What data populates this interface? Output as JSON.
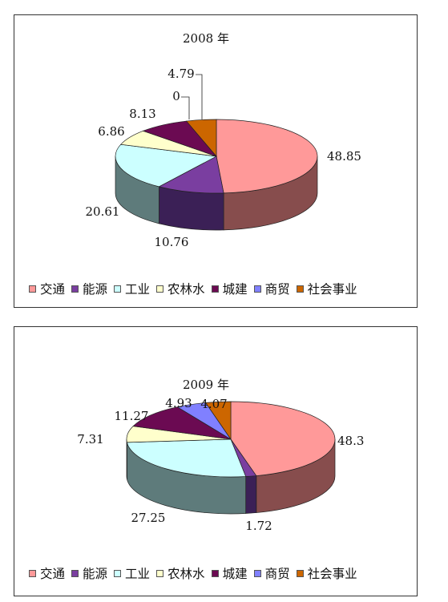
{
  "chart_data": [
    {
      "type": "pie",
      "title": "2008 年",
      "categories": [
        "交通",
        "能源",
        "工业",
        "农林水",
        "城建",
        "商贸",
        "社会事业"
      ],
      "values": [
        48.85,
        10.76,
        20.61,
        6.86,
        8.13,
        0,
        4.79
      ],
      "data_labels": [
        "48.85",
        "10.76",
        "20.61",
        "6.86",
        "8.13",
        "0",
        "4.79"
      ],
      "legend_position": "bottom"
    },
    {
      "type": "pie",
      "title": "2009 年",
      "categories": [
        "交通",
        "能源",
        "工业",
        "农林水",
        "城建",
        "商贸",
        "社会事业"
      ],
      "values": [
        48.3,
        1.72,
        27.25,
        7.31,
        11.27,
        4.93,
        4.07
      ],
      "data_labels": [
        "48.3",
        "1.72",
        "27.25",
        "7.31",
        "11.27",
        "4.93",
        "4.07"
      ],
      "legend_position": "bottom"
    }
  ],
  "colors": {
    "top": [
      "#ff9999",
      "#7a3ea0",
      "#ccffff",
      "#ffffcc",
      "#6b0a52",
      "#8080ff",
      "#cc6600"
    ],
    "side": [
      "#874d4d",
      "#3b2056",
      "#5e7b7b",
      "#8a8a66",
      "#3a0630",
      "#404080",
      "#6b3500"
    ]
  },
  "legend": [
    "交通",
    "能源",
    "工业",
    "农林水",
    "城建",
    "商贸",
    "社会事业"
  ]
}
